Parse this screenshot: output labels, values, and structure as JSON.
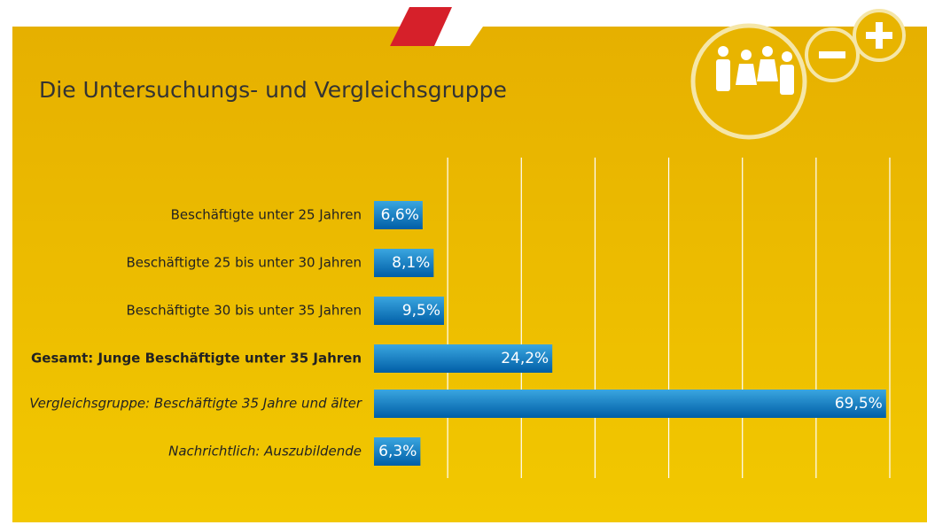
{
  "chart_data": {
    "type": "barh",
    "title": "Die Untersuchungs- und Vergleichsgruppe",
    "categories": [
      "Beschäftigte unter 25 Jahren",
      "Beschäftigte 25 bis unter 30 Jahren",
      "Beschäftigte 30 bis unter 35 Jahren",
      "Gesamt: Junge Beschäftigte unter 35 Jahren",
      "Vergleichsgruppe: Beschäftigte 35 Jahre und älter",
      "Nachrichtlich: Auszubildende"
    ],
    "label_styles": [
      "normal",
      "normal",
      "normal",
      "bold",
      "italic",
      "italic"
    ],
    "values": [
      6.6,
      8.1,
      9.5,
      24.2,
      69.5,
      6.3
    ],
    "value_labels": [
      "6,6%",
      "8,1%",
      "9,5%",
      "24,2%",
      "69,5%",
      "6,3%"
    ],
    "color": "#0a7cc4",
    "xlim": [
      0,
      70
    ],
    "xticks": [
      10,
      20,
      30,
      40,
      50,
      60,
      70
    ],
    "grid": true
  }
}
